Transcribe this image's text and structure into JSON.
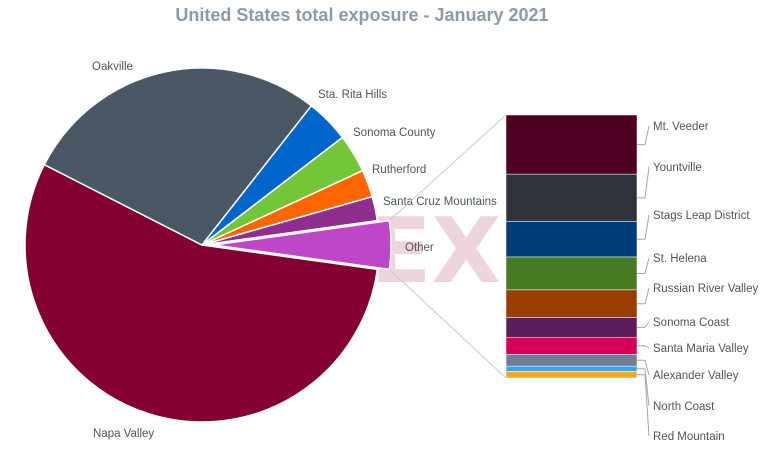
{
  "chart_data": {
    "type": "pie",
    "title": "United States total exposure - January 2021",
    "watermark": "EX",
    "pie": {
      "slices": [
        {
          "label": "Napa Valley",
          "value": 55.3,
          "color": "#840032"
        },
        {
          "label": "Oakville",
          "value": 28.1,
          "color": "#4a5866"
        },
        {
          "label": "Sta. Rita Hills",
          "value": 4.0,
          "color": "#0066cc"
        },
        {
          "label": "Sonoma County",
          "value": 3.5,
          "color": "#73c637"
        },
        {
          "label": "Rutherford",
          "value": 2.5,
          "color": "#ff6600"
        },
        {
          "label": "Santa Cruz Mountains",
          "value": 2.2,
          "color": "#8f2e8f"
        },
        {
          "label": "Other",
          "value": 4.4,
          "color": "#be46c8",
          "exploded": true
        }
      ]
    },
    "other_breakdown": {
      "type": "stacked-bar",
      "segments": [
        {
          "label": "Mt. Veeder",
          "value": 22.5,
          "color": "#4f0022"
        },
        {
          "label": "Yountville",
          "value": 18.0,
          "color": "#2f343c"
        },
        {
          "label": "Stags Leap District",
          "value": 13.5,
          "color": "#003b7a"
        },
        {
          "label": "St. Helena",
          "value": 12.5,
          "color": "#477a22"
        },
        {
          "label": "Russian River Valley",
          "value": 10.5,
          "color": "#993d00"
        },
        {
          "label": "Sonoma Coast",
          "value": 7.5,
          "color": "#5c1d5c"
        },
        {
          "label": "Santa Maria Valley",
          "value": 6.5,
          "color": "#d50058"
        },
        {
          "label": "Alexander Valley",
          "value": 4.5,
          "color": "#6c7f94"
        },
        {
          "label": "North Coast",
          "value": 2.0,
          "color": "#3aa4e8"
        },
        {
          "label": "Red Mountain",
          "value": 2.5,
          "color": "#f5a623"
        }
      ]
    }
  }
}
